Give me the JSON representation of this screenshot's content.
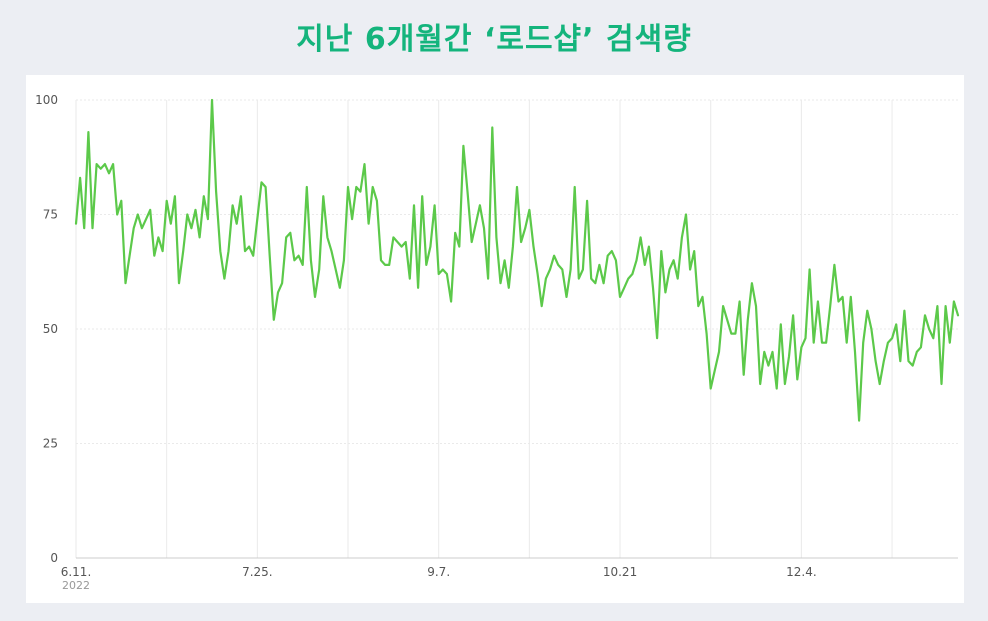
{
  "title": "지난 6개월간 ‘로드샵’ 검색량",
  "colors": {
    "title": "#14b47c",
    "line": "#5cc94a",
    "grid": "#eaeaea",
    "background": "#eceef3"
  },
  "chart_data": {
    "type": "line",
    "title": "지난 6개월간 ‘로드샵’ 검색량",
    "xlabel": "",
    "ylabel": "",
    "ylim": [
      0,
      100
    ],
    "yticks": [
      0,
      25,
      50,
      75,
      100
    ],
    "xticks": [
      {
        "index": 0,
        "label": "6.11.",
        "sublabel": "2022"
      },
      {
        "index": 44,
        "label": "7.25."
      },
      {
        "index": 88,
        "label": "9.7."
      },
      {
        "index": 132,
        "label": "10.21"
      },
      {
        "index": 176,
        "label": "12.4."
      }
    ],
    "grid": true,
    "legend": "none",
    "series": [
      {
        "values": [
          73,
          83,
          72,
          93,
          72,
          86,
          85,
          86,
          84,
          86,
          75,
          78,
          60,
          66,
          72,
          75,
          72,
          74,
          76,
          66,
          70,
          67,
          78,
          73,
          79,
          60,
          67,
          75,
          72,
          76,
          70,
          79,
          74,
          100,
          80,
          67,
          61,
          67,
          77,
          73,
          79,
          67,
          68,
          66,
          74,
          82,
          81,
          66,
          52,
          58,
          60,
          70,
          71,
          65,
          66,
          64,
          81,
          65,
          57,
          63,
          79,
          70,
          67,
          63,
          59,
          65,
          81,
          74,
          81,
          80,
          86,
          73,
          81,
          78,
          65,
          64,
          64,
          70,
          69,
          68,
          69,
          61,
          77,
          59,
          79,
          64,
          68,
          77,
          62,
          63,
          62,
          56,
          71,
          68,
          90,
          80,
          69,
          73,
          77,
          72,
          61,
          94,
          70,
          60,
          65,
          59,
          68,
          81,
          69,
          72,
          76,
          68,
          62,
          55,
          61,
          63,
          66,
          64,
          63,
          57,
          63,
          81,
          61,
          63,
          78,
          61,
          60,
          64,
          60,
          66,
          67,
          65,
          57,
          59,
          61,
          62,
          65,
          70,
          64,
          68,
          59,
          48,
          67,
          58,
          63,
          65,
          61,
          70,
          75,
          63,
          67,
          55,
          57,
          49,
          37,
          41,
          45,
          55,
          52,
          49,
          49,
          56,
          40,
          52,
          60,
          55,
          38,
          45,
          42,
          45,
          37,
          51,
          38,
          44,
          53,
          39,
          46,
          48,
          63,
          47,
          56,
          47,
          47,
          55,
          64,
          56,
          57,
          47,
          57,
          45,
          30,
          47,
          54,
          50,
          43,
          38,
          43,
          47,
          48,
          51,
          43,
          54,
          43,
          42,
          45,
          46,
          53,
          50,
          48,
          55,
          38,
          55,
          47,
          56,
          53
        ]
      }
    ]
  }
}
